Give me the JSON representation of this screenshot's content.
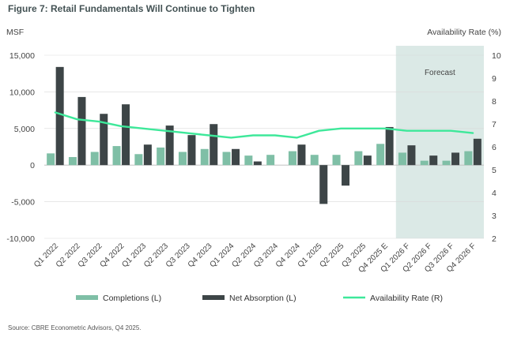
{
  "figure": {
    "title": "Figure 7: Retail Fundamentals Will Continue to Tighten",
    "source": "Source: CBRE Econometric Advisors, Q4 2025."
  },
  "colors": {
    "completions": "#7fbfa6",
    "net_absorption": "#3d4547",
    "availability": "#3ee89a",
    "forecast_band": "#dbe9e6",
    "grid": "#d9d9d9"
  },
  "chart_data": {
    "type": "bar",
    "title": "Figure 7: Retail Fundamentals Will Continue to Tighten",
    "y_left_label": "MSF",
    "y_right_label": "Availability Rate (%)",
    "ylim_left": [
      -10000,
      15000
    ],
    "ylim_right": [
      2,
      10
    ],
    "y_left_ticks": [
      "15,000",
      "10,000",
      "5,000",
      "0",
      "-5,000",
      "-10,000"
    ],
    "y_left_tick_values": [
      15000,
      10000,
      5000,
      0,
      -5000,
      -10000
    ],
    "y_right_ticks": [
      "10",
      "9",
      "8",
      "7",
      "6",
      "5",
      "4",
      "3",
      "2"
    ],
    "y_right_tick_values": [
      10,
      9,
      8,
      7,
      6,
      5,
      4,
      3,
      2
    ],
    "grid": "horizontal",
    "categories": [
      "Q1 2022",
      "Q2 2022",
      "Q3 2022",
      "Q4 2022",
      "Q1 2023",
      "Q2 2023",
      "Q3 2023",
      "Q4 2023",
      "Q1 2024",
      "Q2 2024",
      "Q3 2024",
      "Q4 2024",
      "Q1 2025",
      "Q2 2025",
      "Q3 2025",
      "Q4 2025 E",
      "Q1 2026 F",
      "Q2 2026 F",
      "Q3 2026 F",
      "Q4 2026 F"
    ],
    "series": [
      {
        "name": "Completions (L)",
        "type": "bar",
        "axis": "left",
        "values": [
          1600,
          1100,
          1800,
          2600,
          1500,
          2400,
          1800,
          2200,
          1800,
          1300,
          1400,
          1900,
          1400,
          1400,
          1900,
          2900,
          1700,
          600,
          600,
          1900
        ]
      },
      {
        "name": "Net Absorption (L)",
        "type": "bar",
        "axis": "left",
        "values": [
          13400,
          9300,
          7000,
          8300,
          2800,
          5400,
          4100,
          5600,
          2200,
          500,
          0,
          2800,
          -5300,
          -2800,
          1300,
          5200,
          2700,
          1300,
          1700,
          3600
        ]
      },
      {
        "name": "Availability Rate (R)",
        "type": "line",
        "axis": "right",
        "values": [
          7.5,
          7.2,
          7.1,
          6.9,
          6.8,
          6.7,
          6.6,
          6.5,
          6.4,
          6.5,
          6.5,
          6.4,
          6.7,
          6.8,
          6.8,
          6.8,
          6.7,
          6.7,
          6.7,
          6.6
        ]
      }
    ],
    "forecast": {
      "label": "Forecast",
      "from_category": "Q1 2026 F",
      "to_category": "Q4 2026 F"
    },
    "legend_position": "bottom"
  }
}
